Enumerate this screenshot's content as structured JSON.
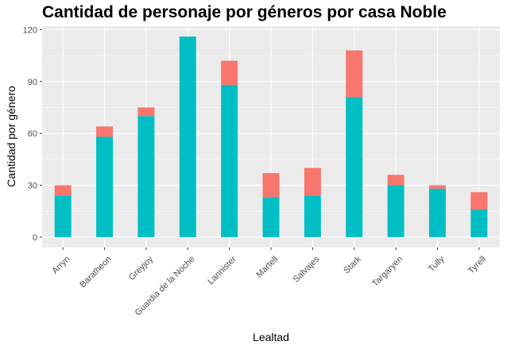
{
  "chart_data": {
    "type": "bar",
    "stacked": true,
    "title": "Cantidad de personaje por géneros por casa Noble",
    "xlabel": "Lealtad",
    "ylabel": "Cantidad por género",
    "categories": [
      "Arryn",
      "Baratheon",
      "Greyjoy",
      "Guardia de la Noche",
      "Lannister",
      "Martell",
      "Salvajes",
      "Stark",
      "Targaryen",
      "Tully",
      "Tyrell"
    ],
    "series": [
      {
        "color": "#00BFC4",
        "values": [
          24,
          58,
          70,
          116,
          88,
          23,
          24,
          81,
          30,
          28,
          16
        ]
      },
      {
        "color": "#F8766D",
        "values": [
          6,
          6,
          5,
          0,
          14,
          14,
          16,
          27,
          6,
          2,
          10
        ]
      }
    ],
    "ylim": [
      -6,
      122
    ],
    "yticks": [
      0,
      30,
      60,
      90,
      120
    ],
    "grid": true,
    "legend": false,
    "panel_color": "#EBEBEB",
    "grid_color": "#FFFFFF"
  }
}
